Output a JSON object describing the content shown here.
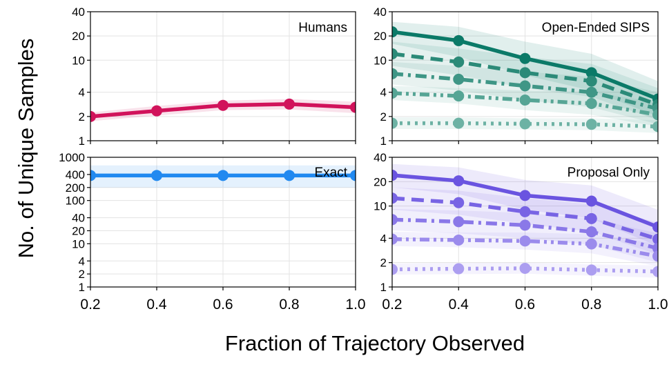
{
  "figure": {
    "ylabel": "No. of Unique Samples",
    "xlabel": "Fraction of Trajectory Observed"
  },
  "chart_data": [
    {
      "id": "humans",
      "type": "line",
      "title": "Humans",
      "yscale": "log",
      "ylim": [
        1,
        40
      ],
      "yticks": [
        1,
        2,
        4,
        10,
        20,
        40
      ],
      "xlim": [
        0.2,
        1.0
      ],
      "xticks": [
        0.2,
        0.4,
        0.6,
        0.8,
        1.0
      ],
      "grid": true,
      "series": [
        {
          "style": "solid",
          "color": "#d1135b",
          "x": [
            0.2,
            0.4,
            0.6,
            0.8,
            1.0
          ],
          "y": [
            2.0,
            2.35,
            2.75,
            2.85,
            2.6
          ],
          "band_lo": [
            1.75,
            2.05,
            2.4,
            2.45,
            2.2
          ],
          "band_hi": [
            2.25,
            2.7,
            3.15,
            3.3,
            3.05
          ]
        }
      ]
    },
    {
      "id": "open-ended-sips",
      "type": "line",
      "title": "Open-Ended SIPS",
      "yscale": "log",
      "ylim": [
        1,
        40
      ],
      "yticks": [
        1,
        2,
        4,
        10,
        20,
        40
      ],
      "xlim": [
        0.2,
        1.0
      ],
      "xticks": [
        0.2,
        0.4,
        0.6,
        0.8,
        1.0
      ],
      "grid": true,
      "series": [
        {
          "style": "solid",
          "color": "#0b7a68",
          "x": [
            0.2,
            0.4,
            0.6,
            0.8,
            1.0
          ],
          "y": [
            22.5,
            17.5,
            10.5,
            7.0,
            3.3
          ],
          "band_lo": [
            16,
            11,
            6.5,
            4.2,
            2.0
          ],
          "band_hi": [
            30,
            26,
            17,
            12,
            5.5
          ]
        },
        {
          "style": "dash",
          "color": "#2b8a78",
          "x": [
            0.2,
            0.4,
            0.6,
            0.8,
            1.0
          ],
          "y": [
            12.0,
            9.5,
            7.0,
            5.5,
            2.8
          ],
          "band_lo": [
            8.5,
            6.5,
            4.5,
            3.5,
            1.8
          ],
          "band_hi": [
            17,
            14,
            11,
            9,
            4.5
          ]
        },
        {
          "style": "dashdot",
          "color": "#3f9686",
          "x": [
            0.2,
            0.4,
            0.6,
            0.8,
            1.0
          ],
          "y": [
            6.8,
            5.8,
            4.8,
            4.0,
            2.5
          ],
          "band_lo": [
            5.0,
            4.2,
            3.2,
            2.6,
            1.6
          ],
          "band_hi": [
            9.5,
            8.5,
            7.2,
            6.2,
            4.0
          ]
        },
        {
          "style": "dashdotdot",
          "color": "#56a595",
          "x": [
            0.2,
            0.4,
            0.6,
            0.8,
            1.0
          ],
          "y": [
            3.9,
            3.6,
            3.2,
            2.9,
            2.1
          ],
          "band_lo": [
            3.2,
            2.9,
            2.4,
            2.1,
            1.5
          ],
          "band_hi": [
            4.8,
            4.5,
            4.2,
            4.0,
            3.0
          ]
        },
        {
          "style": "dot",
          "color": "#6db2a4",
          "x": [
            0.2,
            0.4,
            0.6,
            0.8,
            1.0
          ],
          "y": [
            1.65,
            1.65,
            1.62,
            1.6,
            1.5
          ],
          "band_lo": [
            1.4,
            1.4,
            1.38,
            1.35,
            1.25
          ],
          "band_hi": [
            1.95,
            1.95,
            1.9,
            1.9,
            1.8
          ]
        }
      ]
    },
    {
      "id": "exact",
      "type": "line",
      "title": "Exact",
      "yscale": "log",
      "ylim": [
        1,
        1000
      ],
      "yticks": [
        1,
        2,
        4,
        10,
        20,
        40,
        100,
        200,
        400,
        1000
      ],
      "xlim": [
        0.2,
        1.0
      ],
      "xticks": [
        0.2,
        0.4,
        0.6,
        0.8,
        1.0
      ],
      "grid": true,
      "series": [
        {
          "style": "solid",
          "color": "#2189f0",
          "x": [
            0.2,
            0.4,
            0.6,
            0.8,
            1.0
          ],
          "y": [
            380,
            380,
            380,
            380,
            380
          ],
          "band_lo": [
            200,
            200,
            200,
            200,
            200
          ],
          "band_hi": [
            650,
            650,
            650,
            650,
            650
          ]
        }
      ]
    },
    {
      "id": "proposal-only",
      "type": "line",
      "title": "Proposal Only",
      "yscale": "log",
      "ylim": [
        1,
        40
      ],
      "yticks": [
        1,
        2,
        4,
        10,
        20,
        40
      ],
      "xlim": [
        0.2,
        1.0
      ],
      "xticks": [
        0.2,
        0.4,
        0.6,
        0.8,
        1.0
      ],
      "grid": true,
      "series": [
        {
          "style": "solid",
          "color": "#6a54e0",
          "x": [
            0.2,
            0.4,
            0.6,
            0.8,
            1.0
          ],
          "y": [
            24.0,
            20.5,
            13.5,
            11.5,
            5.5
          ],
          "band_lo": [
            17,
            14,
            9,
            7,
            3.2
          ],
          "band_hi": [
            33,
            30,
            21,
            18,
            9
          ]
        },
        {
          "style": "dash",
          "color": "#7864e4",
          "x": [
            0.2,
            0.4,
            0.6,
            0.8,
            1.0
          ],
          "y": [
            12.5,
            11.0,
            8.5,
            7.0,
            3.9
          ],
          "band_lo": [
            9,
            7.8,
            6,
            4.8,
            2.5
          ],
          "band_hi": [
            17,
            15.5,
            12.5,
            10.5,
            6.2
          ]
        },
        {
          "style": "dashdot",
          "color": "#8a78e8",
          "x": [
            0.2,
            0.4,
            0.6,
            0.8,
            1.0
          ],
          "y": [
            6.8,
            6.4,
            5.8,
            4.8,
            3.0
          ],
          "band_lo": [
            5,
            4.6,
            4,
            3.3,
            2.0
          ],
          "band_hi": [
            9.2,
            8.8,
            8.2,
            7,
            4.6
          ]
        },
        {
          "style": "dashdotdot",
          "color": "#9b8bec",
          "x": [
            0.2,
            0.4,
            0.6,
            0.8,
            1.0
          ],
          "y": [
            3.9,
            3.8,
            3.7,
            3.4,
            2.4
          ],
          "band_lo": [
            3.2,
            3.1,
            2.9,
            2.6,
            1.8
          ],
          "band_hi": [
            4.8,
            4.7,
            4.7,
            4.5,
            3.4
          ]
        },
        {
          "style": "dot",
          "color": "#ac9ef0",
          "x": [
            0.2,
            0.4,
            0.6,
            0.8,
            1.0
          ],
          "y": [
            1.65,
            1.68,
            1.7,
            1.62,
            1.55
          ],
          "band_lo": [
            1.42,
            1.44,
            1.46,
            1.38,
            1.3
          ],
          "band_hi": [
            1.95,
            1.98,
            2.0,
            1.9,
            1.85
          ]
        }
      ]
    }
  ]
}
